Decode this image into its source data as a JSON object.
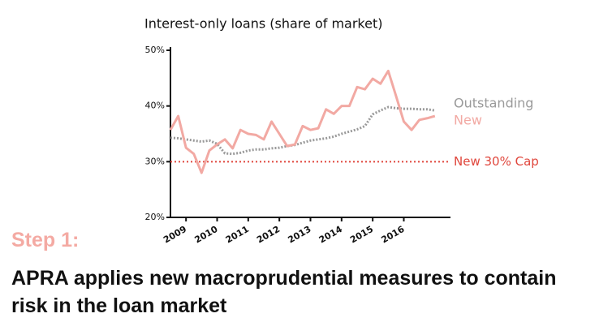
{
  "chart_data": {
    "type": "line",
    "title": "Interest-only loans (share of market)",
    "x": [
      2008.5,
      2008.75,
      2009,
      2009.25,
      2009.5,
      2009.75,
      2010,
      2010.25,
      2010.5,
      2010.75,
      2011,
      2011.25,
      2011.5,
      2011.75,
      2012,
      2012.25,
      2012.5,
      2012.75,
      2013,
      2013.25,
      2013.5,
      2013.75,
      2014,
      2014.25,
      2014.5,
      2014.75,
      2015,
      2015.25,
      2015.5,
      2015.75,
      2016,
      2016.25,
      2016.5,
      2016.75,
      2017
    ],
    "series": [
      {
        "name": "Outstanding",
        "color": "#9a9a9a",
        "linestyle": "dotted",
        "values": [
          34.3,
          34.2,
          34.0,
          33.8,
          33.6,
          33.8,
          33.2,
          31.5,
          31.4,
          31.6,
          32.0,
          32.2,
          32.2,
          32.4,
          32.5,
          32.8,
          33.0,
          33.4,
          33.8,
          34.0,
          34.2,
          34.5,
          35.0,
          35.4,
          35.8,
          36.4,
          38.5,
          39.2,
          39.8,
          39.6,
          39.5,
          39.5,
          39.4,
          39.4,
          39.2
        ]
      },
      {
        "name": "New",
        "color": "#f2a9a3",
        "linestyle": "solid",
        "values": [
          35.7,
          38.2,
          32.5,
          31.4,
          28.0,
          32.0,
          33.1,
          34.0,
          32.4,
          35.7,
          35.0,
          34.8,
          34.0,
          37.2,
          35.0,
          32.8,
          33.1,
          36.4,
          35.7,
          36.0,
          39.4,
          38.6,
          40.0,
          40.0,
          43.4,
          43.0,
          44.9,
          44.0,
          46.3,
          41.8,
          37.2,
          35.7,
          37.5,
          37.8,
          38.2
        ]
      }
    ],
    "reference_line": {
      "value": 30,
      "label": "New 30% Cap",
      "color": "#e0463c"
    },
    "xlim": [
      2008.5,
      2017.5
    ],
    "xticks": [
      2009,
      2010,
      2011,
      2012,
      2013,
      2014,
      2015,
      2016
    ],
    "ylim": [
      20,
      50
    ],
    "yticks": [
      {
        "value": 20,
        "label": "20%"
      },
      {
        "value": 30,
        "label": "30%"
      },
      {
        "value": 40,
        "label": "40%"
      },
      {
        "value": 50,
        "label": "50%"
      }
    ]
  },
  "slide": {
    "step": "Step 1:",
    "heading": "APRA applies new macroprudential measures to contain risk in the loan market"
  }
}
